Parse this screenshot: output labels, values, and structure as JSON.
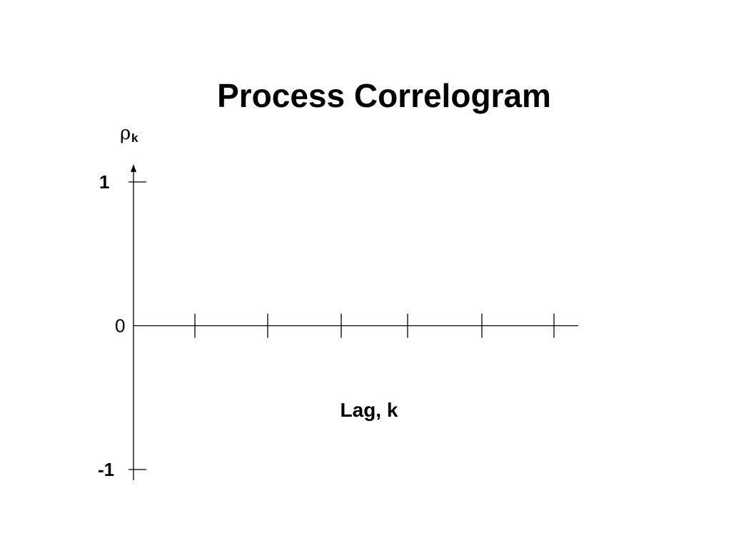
{
  "slide": {
    "title": "Process Correlogram"
  },
  "chart_data": {
    "type": "bar",
    "title": "Process Correlogram",
    "xlabel": "Lag, k",
    "ylabel": {
      "symbol": "ρ",
      "subscript": "k"
    },
    "ylim": [
      -1,
      1
    ],
    "ytick_labels": [
      {
        "value": 1,
        "label": "1"
      },
      {
        "value": 0,
        "label": "0"
      },
      {
        "value": -1,
        "label": "-1"
      }
    ],
    "x_tick_count": 6,
    "series": [],
    "grid": false,
    "legend": "none"
  }
}
